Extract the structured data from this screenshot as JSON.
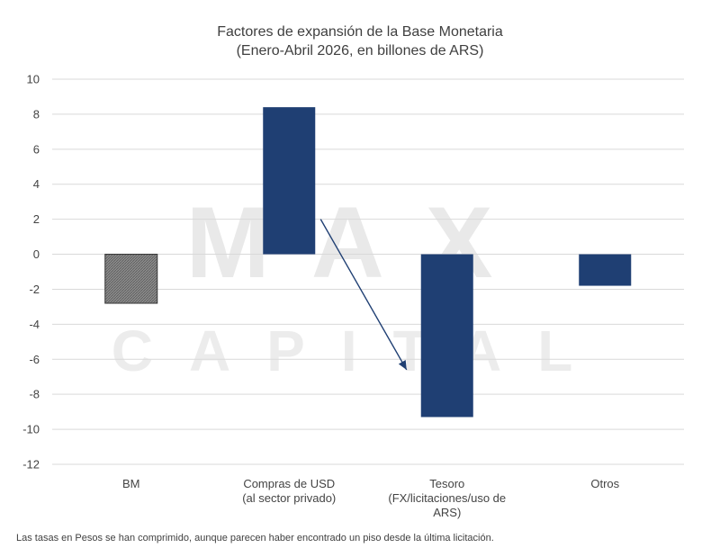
{
  "chart_data": {
    "type": "bar",
    "title": [
      "Factores de expansión de la Base Monetaria",
      "(Enero-Abril 2026, en billones de ARS)"
    ],
    "xlabel": "",
    "ylabel": "",
    "ylim": [
      -12,
      10
    ],
    "yticks": [
      10,
      8,
      6,
      4,
      2,
      0,
      -2,
      -4,
      -6,
      -8,
      -10,
      -12
    ],
    "grid": true,
    "legend": "none",
    "categories": [
      [
        "BM"
      ],
      [
        "Compras de USD",
        "(al sector privado)"
      ],
      [
        "Tesoro",
        "(FX/licitaciones/uso de",
        "ARS)"
      ],
      [
        "Otros"
      ]
    ],
    "values": [
      -2.8,
      8.4,
      -9.3,
      -1.8
    ],
    "bar_colors": [
      "#7f7f7f",
      "#1f3f73",
      "#1f3f73",
      "#1f3f73"
    ],
    "bar_patterns": [
      "hatched",
      "solid",
      "solid",
      "solid"
    ],
    "annotation_arrow": {
      "from": {
        "category": 1,
        "value": 2.0
      },
      "to": {
        "category": 2,
        "value": -6.6
      },
      "color": "#1f3f73"
    },
    "watermark": [
      "MAX",
      "CAPITAL"
    ]
  },
  "footnote": "Las tasas en Pesos se han comprimido, aunque parecen haber encontrado un piso desde la última licitación."
}
